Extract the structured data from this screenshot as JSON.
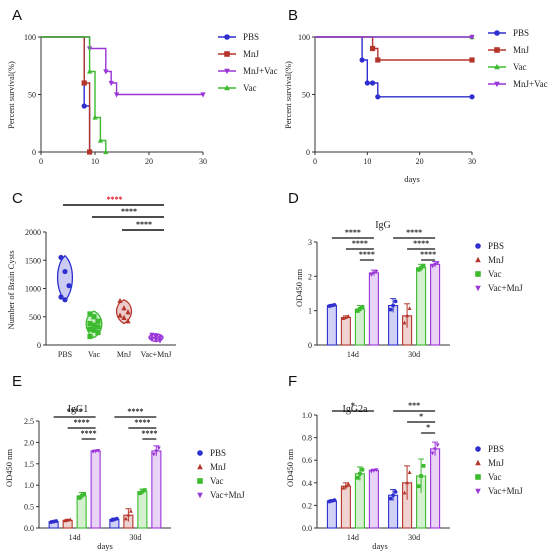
{
  "colors": {
    "PBS": "#2f2fd0",
    "MnJ": "#b5352b",
    "Vac": "#3dbb2f",
    "MnJ+Vac": "#9a35d8",
    "Vac+MnJ": "#9a35d8",
    "axis": "#333333",
    "sig_red": "#e0141e"
  },
  "chart_data": [
    {
      "panel": "A",
      "type": "line",
      "step": true,
      "ylabel": "Percent survival(%)",
      "xlabel": "",
      "xlim": [
        0,
        30
      ],
      "ylim": [
        0,
        100
      ],
      "xticks": [
        0,
        10,
        20,
        30
      ],
      "yticks": [
        0,
        50,
        100
      ],
      "legend": [
        "PBS",
        "MnJ",
        "MnJ+Vac",
        "Vac"
      ],
      "series": [
        {
          "name": "PBS",
          "points": [
            [
              0,
              100
            ],
            [
              8,
              100
            ],
            [
              8,
              40
            ],
            [
              9,
              40
            ],
            [
              9,
              0
            ]
          ],
          "markers": [
            [
              8,
              40
            ],
            [
              9,
              0
            ]
          ]
        },
        {
          "name": "MnJ",
          "points": [
            [
              0,
              100
            ],
            [
              8,
              100
            ],
            [
              8,
              60
            ],
            [
              9,
              60
            ],
            [
              9,
              0
            ]
          ],
          "markers": [
            [
              8,
              60
            ],
            [
              9,
              0
            ]
          ]
        },
        {
          "name": "MnJ+Vac",
          "points": [
            [
              0,
              100
            ],
            [
              9,
              100
            ],
            [
              9,
              90
            ],
            [
              12,
              90
            ],
            [
              12,
              70
            ],
            [
              13,
              70
            ],
            [
              13,
              60
            ],
            [
              14,
              60
            ],
            [
              14,
              50
            ],
            [
              30,
              50
            ]
          ],
          "markers": [
            [
              9,
              90
            ],
            [
              12,
              70
            ],
            [
              13,
              60
            ],
            [
              14,
              50
            ],
            [
              30,
              50
            ]
          ]
        },
        {
          "name": "Vac",
          "points": [
            [
              0,
              100
            ],
            [
              9,
              100
            ],
            [
              9,
              70
            ],
            [
              10,
              70
            ],
            [
              10,
              30
            ],
            [
              11,
              30
            ],
            [
              11,
              10
            ],
            [
              12,
              10
            ],
            [
              12,
              0
            ]
          ],
          "markers": [
            [
              9,
              70
            ],
            [
              10,
              30
            ],
            [
              11,
              10
            ],
            [
              12,
              0
            ]
          ]
        }
      ]
    },
    {
      "panel": "B",
      "type": "line",
      "step": true,
      "ylabel": "Percent survival(%)",
      "xlabel": "days",
      "xlim": [
        0,
        30
      ],
      "ylim": [
        0,
        100
      ],
      "xticks": [
        0,
        10,
        20,
        30
      ],
      "yticks": [
        0,
        50,
        100
      ],
      "legend": [
        "PBS",
        "MnJ",
        "Vac",
        "MnJ+Vac"
      ],
      "series": [
        {
          "name": "PBS",
          "points": [
            [
              0,
              100
            ],
            [
              9,
              100
            ],
            [
              9,
              80
            ],
            [
              10,
              80
            ],
            [
              10,
              60
            ],
            [
              11,
              60
            ],
            [
              11,
              60
            ],
            [
              12,
              60
            ],
            [
              12,
              48
            ],
            [
              30,
              48
            ]
          ],
          "markers": [
            [
              9,
              80
            ],
            [
              10,
              60
            ],
            [
              11,
              60
            ],
            [
              12,
              48
            ],
            [
              30,
              48
            ]
          ]
        },
        {
          "name": "MnJ",
          "points": [
            [
              0,
              100
            ],
            [
              11,
              100
            ],
            [
              11,
              90
            ],
            [
              12,
              90
            ],
            [
              12,
              80
            ],
            [
              30,
              80
            ]
          ],
          "markers": [
            [
              11,
              90
            ],
            [
              12,
              80
            ],
            [
              30,
              80
            ]
          ]
        },
        {
          "name": "Vac",
          "points": [
            [
              0,
              100
            ],
            [
              30,
              100
            ]
          ],
          "markers": [
            [
              30,
              100
            ]
          ]
        },
        {
          "name": "MnJ+Vac",
          "points": [
            [
              0,
              100
            ],
            [
              30,
              100
            ]
          ],
          "markers": [
            [
              30,
              100
            ]
          ]
        }
      ]
    },
    {
      "panel": "C",
      "type": "violin",
      "ylabel": "Number of Brain Cysts",
      "categories": [
        "PBS",
        "Vac",
        "MnJ",
        "Vac+MnJ"
      ],
      "ylim": [
        0,
        2000
      ],
      "yticks": [
        0,
        500,
        1000,
        1500,
        2000
      ],
      "groups": [
        {
          "name": "PBS",
          "points": [
            1550,
            1300,
            1050,
            850,
            800
          ],
          "vmin": 780,
          "vmax": 1580,
          "width": 36
        },
        {
          "name": "Vac",
          "points": [
            550,
            500,
            420,
            380,
            350,
            320,
            280,
            260,
            220,
            150
          ],
          "vmin": 130,
          "vmax": 600,
          "width": 38
        },
        {
          "name": "MnJ",
          "points": [
            780,
            650,
            580,
            520,
            480,
            420
          ],
          "vmin": 380,
          "vmax": 800,
          "width": 36
        },
        {
          "name": "Vac+MnJ",
          "points": [
            180,
            150,
            130,
            110,
            100,
            80
          ],
          "vmin": 60,
          "vmax": 200,
          "width": 34
        }
      ],
      "significance": [
        {
          "from": 0,
          "to": 3,
          "label": "****",
          "red": true
        },
        {
          "from": 1,
          "to": 3,
          "label": "****"
        },
        {
          "from": 2,
          "to": 3,
          "label": "****"
        }
      ]
    },
    {
      "panel": "D",
      "type": "bar",
      "title": "IgG",
      "ylabel": "OD450 nm",
      "xlabel": "",
      "categories": [
        "14d",
        "30d"
      ],
      "ylim": [
        0,
        3
      ],
      "yticks": [
        0,
        1,
        2,
        3
      ],
      "series": [
        {
          "name": "PBS",
          "values": [
            1.15,
            1.15
          ],
          "err": [
            0.03,
            0.2
          ]
        },
        {
          "name": "MnJ",
          "values": [
            0.8,
            0.85
          ],
          "err": [
            0.05,
            0.35
          ]
        },
        {
          "name": "Vac",
          "values": [
            1.05,
            2.25
          ],
          "err": [
            0.1,
            0.1
          ]
        },
        {
          "name": "Vac+MnJ",
          "values": [
            2.1,
            2.35
          ],
          "err": [
            0.08,
            0.08
          ]
        }
      ],
      "significance": [
        {
          "group": 0,
          "from": 0,
          "to": 3,
          "level": 3,
          "label": "****"
        },
        {
          "group": 0,
          "from": 1,
          "to": 3,
          "level": 2,
          "label": "****"
        },
        {
          "group": 0,
          "from": 2,
          "to": 3,
          "level": 1,
          "label": "****"
        },
        {
          "group": 1,
          "from": 0,
          "to": 3,
          "level": 3,
          "label": "****"
        },
        {
          "group": 1,
          "from": 1,
          "to": 3,
          "level": 2,
          "label": "****"
        },
        {
          "group": 1,
          "from": 2,
          "to": 3,
          "level": 1,
          "label": "****"
        }
      ],
      "legend": [
        "PBS",
        "MnJ",
        "Vac",
        "Vac+MnJ"
      ]
    },
    {
      "panel": "E",
      "type": "bar",
      "title": "IgG1",
      "ylabel": "OD450 nm",
      "xlabel": "days",
      "categories": [
        "14d",
        "30d"
      ],
      "ylim": [
        0,
        2.5
      ],
      "yticks": [
        0.0,
        0.5,
        1.0,
        1.5,
        2.0,
        2.5
      ],
      "series": [
        {
          "name": "PBS",
          "values": [
            0.15,
            0.2
          ],
          "err": [
            0.02,
            0.03
          ]
        },
        {
          "name": "MnJ",
          "values": [
            0.18,
            0.3
          ],
          "err": [
            0.02,
            0.15
          ]
        },
        {
          "name": "Vac",
          "values": [
            0.75,
            0.85
          ],
          "err": [
            0.08,
            0.06
          ]
        },
        {
          "name": "Vac+MnJ",
          "values": [
            1.8,
            1.8
          ],
          "err": [
            0.02,
            0.12
          ]
        }
      ],
      "significance": [
        {
          "group": 0,
          "from": 0,
          "to": 3,
          "level": 3,
          "label": "****"
        },
        {
          "group": 0,
          "from": 1,
          "to": 3,
          "level": 2,
          "label": "****"
        },
        {
          "group": 0,
          "from": 2,
          "to": 3,
          "level": 1,
          "label": "****"
        },
        {
          "group": 1,
          "from": 0,
          "to": 3,
          "level": 3,
          "label": "****"
        },
        {
          "group": 1,
          "from": 1,
          "to": 3,
          "level": 2,
          "label": "****"
        },
        {
          "group": 1,
          "from": 2,
          "to": 3,
          "level": 1,
          "label": "****"
        }
      ],
      "legend": [
        "PBS",
        "MnJ",
        "Vac",
        "Vac+MnJ"
      ]
    },
    {
      "panel": "F",
      "type": "bar",
      "title": "IgG2a",
      "ylabel": "OD450 nm",
      "xlabel": "days",
      "categories": [
        "14d",
        "30d"
      ],
      "ylim": [
        0,
        1.0
      ],
      "yticks": [
        0.0,
        0.2,
        0.4,
        0.6,
        0.8,
        1.0
      ],
      "series": [
        {
          "name": "PBS",
          "values": [
            0.24,
            0.29
          ],
          "err": [
            0.01,
            0.05
          ]
        },
        {
          "name": "MnJ",
          "values": [
            0.37,
            0.4
          ],
          "err": [
            0.03,
            0.15
          ]
        },
        {
          "name": "Vac",
          "values": [
            0.48,
            0.46
          ],
          "err": [
            0.06,
            0.15
          ]
        },
        {
          "name": "Vac+MnJ",
          "values": [
            0.51,
            0.7
          ],
          "err": [
            0.01,
            0.06
          ]
        }
      ],
      "significance": [
        {
          "group": 0,
          "from": 0,
          "to": 3,
          "level": 3,
          "label": "*"
        },
        {
          "group": 1,
          "from": 0,
          "to": 3,
          "level": 3,
          "label": "***"
        },
        {
          "group": 1,
          "from": 1,
          "to": 3,
          "level": 2,
          "label": "*"
        },
        {
          "group": 1,
          "from": 2,
          "to": 3,
          "level": 1,
          "label": "*"
        }
      ],
      "legend": [
        "PBS",
        "MnJ",
        "Vac",
        "Vac+MnJ"
      ]
    }
  ]
}
